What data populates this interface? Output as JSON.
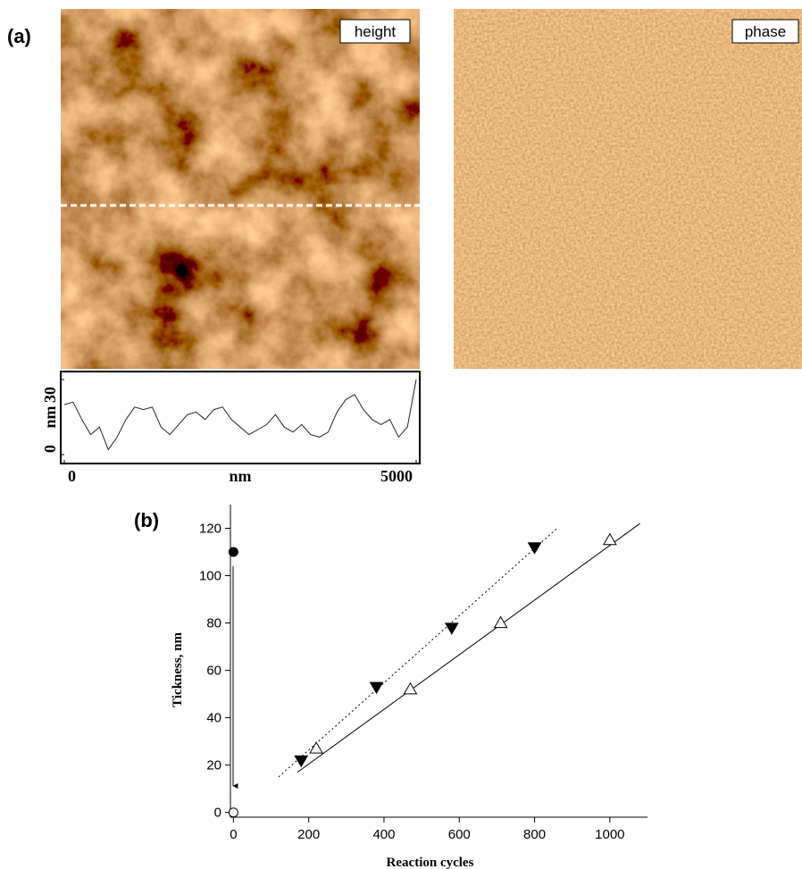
{
  "panels": {
    "a": "(a)",
    "b": "(b)",
    "height": "height",
    "phase": "phase"
  },
  "chart_data": [
    {
      "type": "line",
      "xlabel": "nm",
      "ylabel": "nm",
      "x": [
        0,
        125,
        250,
        375,
        500,
        625,
        750,
        875,
        1000,
        1125,
        1250,
        1375,
        1500,
        1625,
        1750,
        1875,
        2000,
        2125,
        2250,
        2375,
        2500,
        2625,
        2750,
        2875,
        3000,
        3125,
        3250,
        3375,
        3500,
        3625,
        3750,
        3875,
        4000,
        4125,
        4250,
        4375,
        4500,
        4625,
        4750,
        4875,
        5000
      ],
      "values": [
        20,
        21,
        14,
        8,
        11,
        2,
        7,
        14,
        19,
        18,
        19,
        11,
        8,
        12,
        16,
        17,
        14,
        18,
        19,
        14,
        11,
        8,
        10,
        12,
        16,
        11,
        9,
        12,
        8,
        7,
        9,
        17,
        22,
        24,
        18,
        14,
        12,
        14,
        7,
        11,
        30
      ],
      "color": "#222",
      "xlim": [
        0,
        5000
      ],
      "xticks": [
        0,
        5000
      ],
      "ylim": [
        0,
        30
      ],
      "yticks": [
        0,
        30
      ]
    },
    {
      "type": "scatter",
      "xlabel": "Reaction cycles",
      "ylabel": "Tickness, nm",
      "series": [
        {
          "marker": "triangle-up-open",
          "color": "#000",
          "x": [
            220,
            470,
            710,
            1000
          ],
          "values": [
            27,
            52,
            80,
            115
          ]
        },
        {
          "marker": "triangle-down-filled",
          "color": "#000",
          "x": [
            180,
            380,
            580,
            800
          ],
          "values": [
            22,
            53,
            78,
            112
          ]
        },
        {
          "marker": "circle-filled",
          "color": "#000",
          "x": [
            0
          ],
          "values": [
            110
          ]
        },
        {
          "marker": "circle-open",
          "color": "#000",
          "x": [
            0
          ],
          "values": [
            0
          ]
        }
      ],
      "lines": [
        {
          "style": "solid",
          "x": [
            170,
            1080
          ],
          "values": [
            17,
            122
          ]
        },
        {
          "style": "dotted",
          "x": [
            120,
            860
          ],
          "values": [
            15,
            120
          ]
        }
      ],
      "xlim": [
        -8,
        1100
      ],
      "xticks": [
        0,
        200,
        400,
        600,
        800,
        1000
      ],
      "ylim": [
        -2,
        130
      ],
      "yticks": [
        0,
        20,
        40,
        60,
        80,
        100,
        120
      ]
    }
  ]
}
